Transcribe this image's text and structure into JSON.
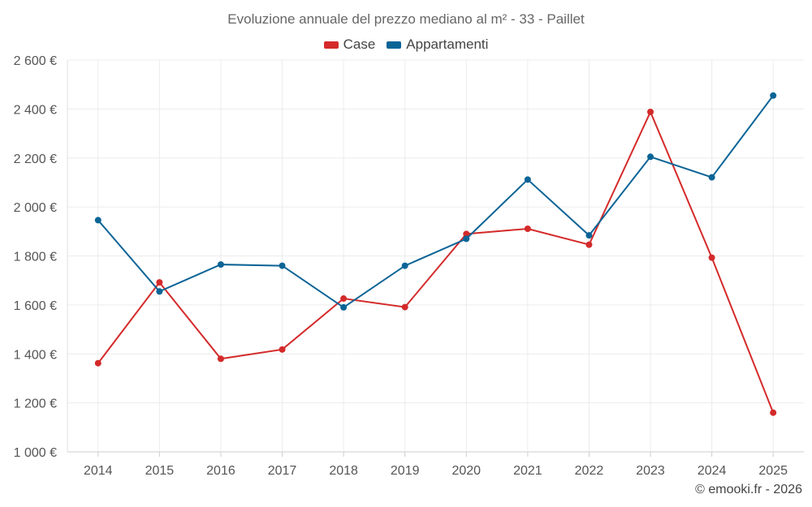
{
  "chart_data": {
    "type": "line",
    "title": "Evoluzione annuale del prezzo mediano al m² - 33 - Paillet",
    "categories": [
      "2014",
      "2015",
      "2016",
      "2017",
      "2018",
      "2019",
      "2020",
      "2021",
      "2022",
      "2023",
      "2024",
      "2025"
    ],
    "series": [
      {
        "name": "Case",
        "color": "#d42a2a",
        "values": [
          1362,
          1692,
          1380,
          1418,
          1626,
          1591,
          1890,
          1911,
          1846,
          2388,
          1793,
          1160
        ]
      },
      {
        "name": "Appartamenti",
        "color": "#0b6496",
        "values": [
          1946,
          1655,
          1765,
          1760,
          1590,
          1760,
          1870,
          2112,
          1884,
          2205,
          2121,
          2455
        ]
      }
    ],
    "yticks": [
      "1 000 €",
      "1 200 €",
      "1 400 €",
      "1 600 €",
      "1 800 €",
      "2 000 €",
      "2 200 €",
      "2 400 €",
      "2 600 €"
    ],
    "ylim": [
      1000,
      2600
    ],
    "xlabel": "",
    "ylabel": "",
    "grid": true,
    "legend": "top-center"
  },
  "credit": "© emooki.fr - 2026"
}
